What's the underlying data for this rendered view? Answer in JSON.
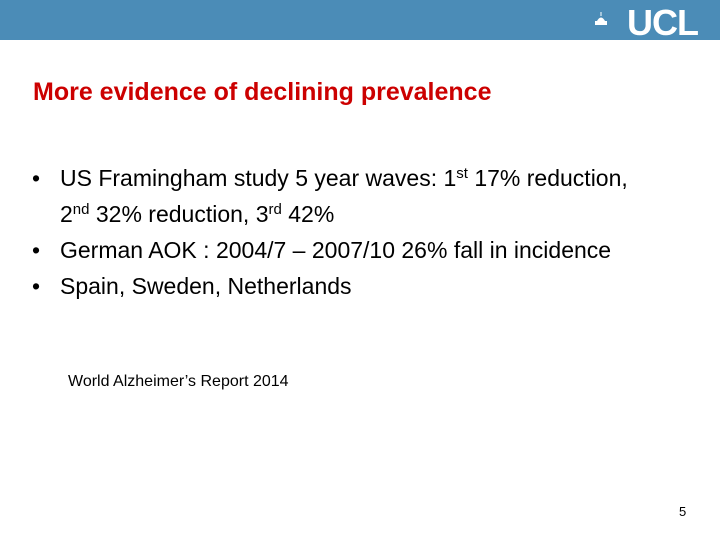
{
  "header": {
    "logo": "UCL"
  },
  "title": "More evidence of declining prevalence",
  "bullets": [
    {
      "parts": [
        "US Framingham study 5 year waves: 1",
        "st",
        " 17% reduction, 2",
        "nd",
        " 32% reduction, 3",
        "rd",
        " 42%"
      ]
    },
    {
      "parts": [
        "German AOK : 2004/7 – 2007/10 26% fall in incidence"
      ]
    },
    {
      "parts": [
        "Spain, Sweden, Netherlands"
      ]
    }
  ],
  "source": "World Alzheimer’s Report 2014",
  "page_number": "5"
}
